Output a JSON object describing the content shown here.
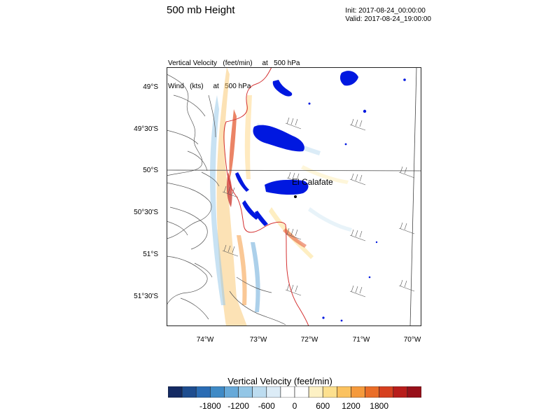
{
  "header": {
    "title": "500 mb Height",
    "init": "Init: 2017-08-24_00:00:00",
    "valid": "Valid: 2017-08-24_19:00:00"
  },
  "subtitle": {
    "line1": "Vertical Velocity   (feet/min)     at   500 hPa",
    "line2": "Wind   (kts)     at   500 hPa"
  },
  "map": {
    "lat_labels": [
      "49°S",
      "49°30'S",
      "50°S",
      "50°30'S",
      "51°S",
      "51°30'S"
    ],
    "lon_labels": [
      "74°W",
      "73°W",
      "72°W",
      "71°W",
      "70°W"
    ],
    "city": "El Calafate",
    "colors": {
      "lakes": "#0018e0",
      "border": "#d43030",
      "coast": "#555555"
    }
  },
  "colorbar": {
    "title": "Vertical Velocity  (feet/min)",
    "tick_labels": [
      "-1800",
      "-1200",
      "-600",
      "0",
      "600",
      "1200",
      "1800"
    ],
    "colors": [
      "#142a63",
      "#1e4d8f",
      "#2a6cb4",
      "#3f8ac6",
      "#66a9d9",
      "#93c6e6",
      "#bcdcf0",
      "#dcecf7",
      "#ffffff",
      "#ffffff",
      "#fdf1c4",
      "#fde08e",
      "#fbc25f",
      "#f59a3c",
      "#ea6e28",
      "#d6401f",
      "#b81d1b",
      "#98101a"
    ]
  }
}
